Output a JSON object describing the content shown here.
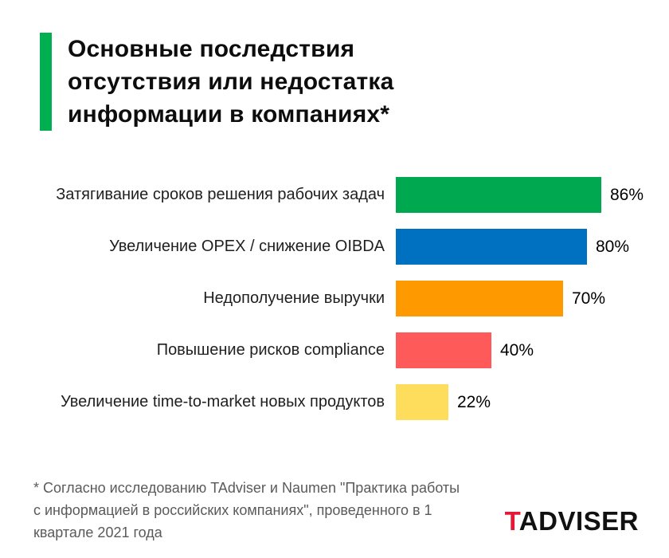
{
  "title": {
    "lines": [
      "Основные последствия",
      "отсутствия или недостатка",
      "информации в компаниях*"
    ],
    "accent_color": "#00b050"
  },
  "chart_data": {
    "type": "bar",
    "orientation": "horizontal",
    "title": "Основные последствия отсутствия или недостатка информации в компаниях*",
    "categories": [
      "Затягивание сроков решения рабочих задач",
      "Увеличение OPEX / снижение OIBDA",
      "Недополучение выручки",
      "Повышение рисков compliance",
      "Увеличение time-to-market новых продуктов"
    ],
    "values": [
      86,
      80,
      70,
      40,
      22
    ],
    "value_labels": [
      "86%",
      "80%",
      "70%",
      "40%",
      "22%"
    ],
    "bar_colors": [
      "#00a94f",
      "#0070c0",
      "#ff9900",
      "#ff5a5a",
      "#ffdd5c"
    ],
    "unit": "%",
    "xlim": [
      0,
      100
    ],
    "grid": false,
    "legend": false
  },
  "footnote": {
    "text": "* Согласно исследованию TAdviser и Naumen \"Практика работы с информацией в российских компаниях\", проведенного в 1 квартале 2021 года"
  },
  "logo": {
    "prefix": "T",
    "rest": "ADVISER",
    "prefix_color": "#e31937",
    "rest_color": "#111111"
  }
}
